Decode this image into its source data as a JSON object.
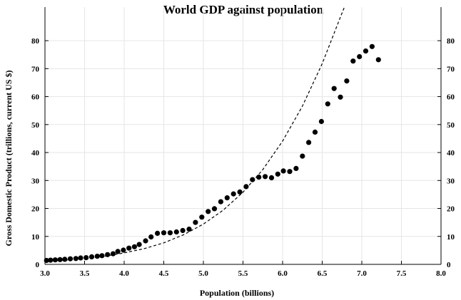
{
  "chart_data": {
    "type": "scatter",
    "title": "World GDP against population",
    "xlabel": "Population (billions)",
    "ylabel": "Gross Domestic Product (trillions, current US $)",
    "xlim": [
      3.0,
      8.0
    ],
    "ylim": [
      0,
      92
    ],
    "x_ticks": [
      "3.0",
      "3.5",
      "4.0",
      "4.5",
      "5.0",
      "5.5",
      "6.0",
      "6.5",
      "7.0",
      "7.5",
      "8.0"
    ],
    "x_tick_values": [
      3.0,
      3.5,
      4.0,
      4.5,
      5.0,
      5.5,
      6.0,
      6.5,
      7.0,
      7.5,
      8.0
    ],
    "y_ticks": [
      "0",
      "10",
      "20",
      "30",
      "40",
      "50",
      "60",
      "70",
      "80"
    ],
    "y_tick_values": [
      0,
      10,
      20,
      30,
      40,
      50,
      60,
      70,
      80
    ],
    "right_axis_ticks": [
      "0",
      "10",
      "20",
      "30",
      "40",
      "50",
      "60",
      "70",
      "80"
    ],
    "grid": true,
    "legend": "none",
    "series": [
      {
        "style": "markers",
        "color": "#000000",
        "points": [
          [
            3.02,
            1.4
          ],
          [
            3.07,
            1.5
          ],
          [
            3.13,
            1.6
          ],
          [
            3.19,
            1.7
          ],
          [
            3.25,
            1.8
          ],
          [
            3.32,
            2.0
          ],
          [
            3.39,
            2.1
          ],
          [
            3.45,
            2.3
          ],
          [
            3.52,
            2.4
          ],
          [
            3.59,
            2.7
          ],
          [
            3.66,
            2.9
          ],
          [
            3.72,
            3.1
          ],
          [
            3.79,
            3.5
          ],
          [
            3.86,
            3.8
          ],
          [
            3.92,
            4.6
          ],
          [
            3.99,
            5.1
          ],
          [
            4.06,
            5.8
          ],
          [
            4.13,
            6.3
          ],
          [
            4.19,
            7.1
          ],
          [
            4.27,
            8.4
          ],
          [
            4.34,
            9.8
          ],
          [
            4.42,
            11.1
          ],
          [
            4.5,
            11.3
          ],
          [
            4.58,
            11.3
          ],
          [
            4.66,
            11.6
          ],
          [
            4.74,
            12.1
          ],
          [
            4.82,
            12.6
          ],
          [
            4.9,
            15.0
          ],
          [
            4.98,
            16.9
          ],
          [
            5.06,
            18.9
          ],
          [
            5.14,
            19.9
          ],
          [
            5.22,
            22.4
          ],
          [
            5.3,
            23.8
          ],
          [
            5.38,
            25.2
          ],
          [
            5.46,
            25.9
          ],
          [
            5.54,
            27.8
          ],
          [
            5.62,
            30.3
          ],
          [
            5.7,
            31.2
          ],
          [
            5.78,
            31.4
          ],
          [
            5.86,
            31.0
          ],
          [
            5.94,
            32.3
          ],
          [
            6.01,
            33.4
          ],
          [
            6.09,
            33.2
          ],
          [
            6.17,
            34.3
          ],
          [
            6.25,
            38.7
          ],
          [
            6.33,
            43.6
          ],
          [
            6.41,
            47.3
          ],
          [
            6.49,
            51.1
          ],
          [
            6.57,
            57.4
          ],
          [
            6.65,
            62.9
          ],
          [
            6.73,
            59.8
          ],
          [
            6.81,
            65.6
          ],
          [
            6.89,
            72.7
          ],
          [
            6.97,
            74.3
          ],
          [
            7.05,
            76.3
          ],
          [
            7.13,
            77.9
          ],
          [
            7.21,
            73.2
          ]
        ]
      },
      {
        "style": "dashed-trend",
        "color": "#000000",
        "points": [
          [
            3.0,
            1.2
          ],
          [
            3.25,
            1.5
          ],
          [
            3.5,
            2.1
          ],
          [
            3.75,
            2.9
          ],
          [
            4.0,
            4.1
          ],
          [
            4.25,
            5.6
          ],
          [
            4.5,
            7.7
          ],
          [
            4.75,
            10.6
          ],
          [
            5.0,
            14.4
          ],
          [
            5.25,
            19.4
          ],
          [
            5.5,
            25.8
          ],
          [
            5.75,
            33.9
          ],
          [
            6.0,
            44.1
          ],
          [
            6.25,
            56.6
          ],
          [
            6.5,
            71.8
          ],
          [
            6.75,
            89.9
          ],
          [
            6.78,
            92.0
          ]
        ]
      }
    ]
  }
}
